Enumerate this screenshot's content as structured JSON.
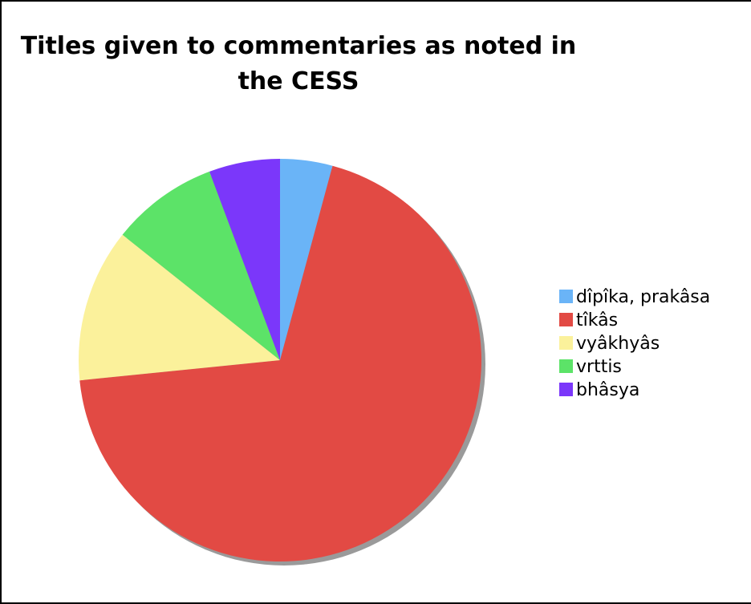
{
  "chart_data": {
    "type": "pie",
    "title": "Titles given to commentaries as noted in the CESS",
    "legend_position": "right",
    "slices": [
      {
        "label": "dîpîka, prakâsa",
        "value": 4.2,
        "color": "#6ab4f7"
      },
      {
        "label": "tîkâs",
        "value": 69.2,
        "color": "#e24a44"
      },
      {
        "label": "vyâkhyâs",
        "value": 12.3,
        "color": "#fbf19b"
      },
      {
        "label": "vrttis",
        "value": 8.6,
        "color": "#5ce368"
      },
      {
        "label": "bhâsya",
        "value": 5.7,
        "color": "#7b37fa"
      }
    ]
  }
}
